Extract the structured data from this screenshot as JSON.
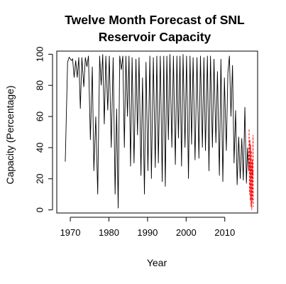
{
  "chart_data": {
    "type": "line",
    "title_lines": [
      "Twelve Month Forecast of SNL",
      "Reservoir Capacity"
    ],
    "xlabel": "Year",
    "ylabel": "Capacity (Percentage)",
    "xlim": [
      1966.5,
      2018.5
    ],
    "ylim": [
      -2,
      102
    ],
    "x_ticks": [
      1970,
      1980,
      1990,
      2000,
      2010
    ],
    "y_ticks": [
      0,
      20,
      40,
      60,
      80,
      100
    ],
    "grid": false,
    "series": [
      {
        "color": "#000000",
        "values": [
          [
            1968.7,
            31
          ],
          [
            1969.3,
            95
          ],
          [
            1969.7,
            98
          ],
          [
            1970.3,
            96
          ],
          [
            1970.6,
            97
          ],
          [
            1971.0,
            85
          ],
          [
            1971.4,
            96
          ],
          [
            1971.8,
            85
          ],
          [
            1972.2,
            98
          ],
          [
            1972.6,
            65
          ],
          [
            1973.0,
            98
          ],
          [
            1973.5,
            79
          ],
          [
            1973.9,
            98
          ],
          [
            1974.3,
            92
          ],
          [
            1974.7,
            99
          ],
          [
            1975.2,
            45
          ],
          [
            1975.7,
            92
          ],
          [
            1976.1,
            25
          ],
          [
            1976.6,
            60
          ],
          [
            1977.1,
            10
          ],
          [
            1977.6,
            99
          ],
          [
            1978.0,
            80
          ],
          [
            1978.4,
            100
          ],
          [
            1978.8,
            55
          ],
          [
            1979.2,
            99
          ],
          [
            1979.7,
            64
          ],
          [
            1980.1,
            99
          ],
          [
            1980.6,
            40
          ],
          [
            1981.1,
            98
          ],
          [
            1981.6,
            10
          ],
          [
            1982.0,
            65
          ],
          [
            1982.4,
            1
          ],
          [
            1982.8,
            99
          ],
          [
            1983.2,
            90
          ],
          [
            1983.6,
            99
          ],
          [
            1984.0,
            40
          ],
          [
            1984.4,
            99
          ],
          [
            1984.8,
            60
          ],
          [
            1985.2,
            99
          ],
          [
            1985.6,
            28
          ],
          [
            1986.0,
            98
          ],
          [
            1986.5,
            30
          ],
          [
            1987.0,
            97
          ],
          [
            1987.4,
            48
          ],
          [
            1987.8,
            98
          ],
          [
            1988.3,
            22
          ],
          [
            1988.7,
            85
          ],
          [
            1989.2,
            10
          ],
          [
            1989.6,
            95
          ],
          [
            1990.1,
            25
          ],
          [
            1990.6,
            99
          ],
          [
            1991.0,
            20
          ],
          [
            1991.5,
            98
          ],
          [
            1992.0,
            27
          ],
          [
            1992.4,
            99
          ],
          [
            1992.8,
            30
          ],
          [
            1993.3,
            99
          ],
          [
            1993.8,
            18
          ],
          [
            1994.2,
            99
          ],
          [
            1994.6,
            15
          ],
          [
            1995.0,
            99
          ],
          [
            1995.4,
            45
          ],
          [
            1995.8,
            100
          ],
          [
            1996.3,
            40
          ],
          [
            1996.7,
            99
          ],
          [
            1997.2,
            29
          ],
          [
            1997.6,
            99
          ],
          [
            1998.0,
            46
          ],
          [
            1998.4,
            99
          ],
          [
            1998.8,
            28
          ],
          [
            1999.2,
            100
          ],
          [
            1999.7,
            40
          ],
          [
            2000.1,
            99
          ],
          [
            2000.6,
            20
          ],
          [
            2001.0,
            99
          ],
          [
            2001.4,
            42
          ],
          [
            2001.8,
            98
          ],
          [
            2002.3,
            32
          ],
          [
            2002.8,
            98
          ],
          [
            2003.3,
            33
          ],
          [
            2003.7,
            99
          ],
          [
            2004.2,
            40
          ],
          [
            2004.6,
            98
          ],
          [
            2005.0,
            38
          ],
          [
            2005.5,
            99
          ],
          [
            2005.9,
            25
          ],
          [
            2006.3,
            99
          ],
          [
            2006.8,
            40
          ],
          [
            2007.2,
            97
          ],
          [
            2007.7,
            43
          ],
          [
            2008.1,
            89
          ],
          [
            2008.6,
            22
          ],
          [
            2009.0,
            97
          ],
          [
            2009.5,
            18
          ],
          [
            2009.9,
            85
          ],
          [
            2010.4,
            38
          ],
          [
            2010.8,
            88
          ],
          [
            2011.2,
            99
          ],
          [
            2011.6,
            60
          ],
          [
            2012.0,
            93
          ],
          [
            2012.4,
            30
          ],
          [
            2012.8,
            64
          ],
          [
            2013.2,
            16
          ],
          [
            2013.6,
            47
          ],
          [
            2014.0,
            20
          ],
          [
            2014.4,
            46
          ],
          [
            2014.8,
            19
          ],
          [
            2015.2,
            66
          ],
          [
            2015.6,
            17
          ],
          [
            2015.9,
            40
          ],
          [
            2016.2,
            25
          ]
        ]
      },
      {
        "color": "#ff0000",
        "dashed": true,
        "values": [
          [
            2016.2,
            25
          ],
          [
            2016.3,
            52
          ],
          [
            2016.4,
            10
          ],
          [
            2016.5,
            45
          ],
          [
            2016.6,
            6
          ],
          [
            2016.7,
            42
          ],
          [
            2016.8,
            2
          ],
          [
            2016.9,
            38
          ],
          [
            2017.0,
            0
          ],
          [
            2017.1,
            32
          ],
          [
            2017.2,
            5
          ],
          [
            2017.3,
            48
          ],
          [
            2017.4,
            2
          ]
        ]
      },
      {
        "color": "#ff0000",
        "dashed": true,
        "values": [
          [
            2016.2,
            25
          ],
          [
            2016.4,
            30
          ],
          [
            2016.6,
            22
          ],
          [
            2016.8,
            28
          ],
          [
            2017.0,
            20
          ],
          [
            2017.2,
            26
          ],
          [
            2017.4,
            22
          ]
        ]
      }
    ]
  }
}
